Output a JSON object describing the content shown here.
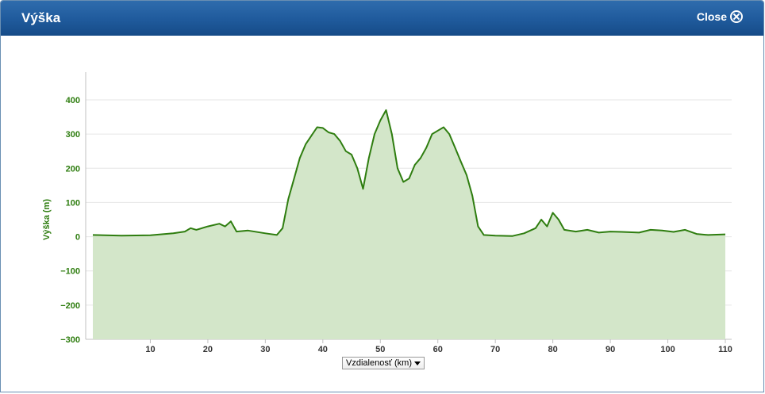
{
  "window": {
    "title": "Výška",
    "close_label": "Close"
  },
  "controls": {
    "x_axis_select": "Vzdialenosť (km)"
  },
  "colors": {
    "line": "#2e7d0f",
    "fill": "#d3e6c9",
    "axis_text": "#2e7d0f",
    "titlebar": "#1f5a9c"
  },
  "chart_data": {
    "type": "area",
    "ylabel": "Výška (m)",
    "xlabel": "Vzdialenosť (km)",
    "xlim": [
      0,
      110
    ],
    "ylim": [
      -300,
      400
    ],
    "x_ticks": [
      10,
      20,
      30,
      40,
      50,
      60,
      70,
      80,
      90,
      100,
      110
    ],
    "y_ticks": [
      400,
      300,
      200,
      100,
      0,
      -100,
      -200,
      -300
    ],
    "y_tick_labels": [
      "400",
      "300",
      "200",
      "100",
      "0",
      "−100",
      "−200",
      "−300"
    ],
    "series": [
      {
        "x": [
          0,
          5,
          10,
          14,
          16,
          17,
          18,
          20,
          22,
          23,
          24,
          25,
          27,
          30,
          32,
          33,
          34,
          35,
          36,
          37,
          38,
          39,
          40,
          41,
          42,
          43,
          44,
          45,
          46,
          47,
          48,
          49,
          50,
          51,
          52,
          53,
          54,
          55,
          56,
          57,
          58,
          59,
          60,
          61,
          62,
          63,
          64,
          65,
          66,
          67,
          68,
          70,
          73,
          75,
          77,
          78,
          79,
          80,
          81,
          82,
          84,
          86,
          88,
          90,
          92,
          95,
          97,
          99,
          101,
          103,
          105,
          107,
          110
        ],
        "y": [
          5,
          3,
          4,
          10,
          15,
          25,
          20,
          30,
          38,
          30,
          45,
          15,
          18,
          10,
          5,
          25,
          110,
          170,
          230,
          270,
          295,
          320,
          318,
          305,
          300,
          280,
          250,
          240,
          200,
          140,
          230,
          300,
          340,
          370,
          300,
          200,
          160,
          170,
          210,
          230,
          260,
          300,
          310,
          320,
          300,
          260,
          220,
          180,
          120,
          30,
          5,
          3,
          2,
          10,
          25,
          50,
          30,
          70,
          50,
          20,
          15,
          20,
          12,
          15,
          14,
          12,
          20,
          18,
          14,
          20,
          8,
          5,
          7
        ]
      }
    ]
  }
}
